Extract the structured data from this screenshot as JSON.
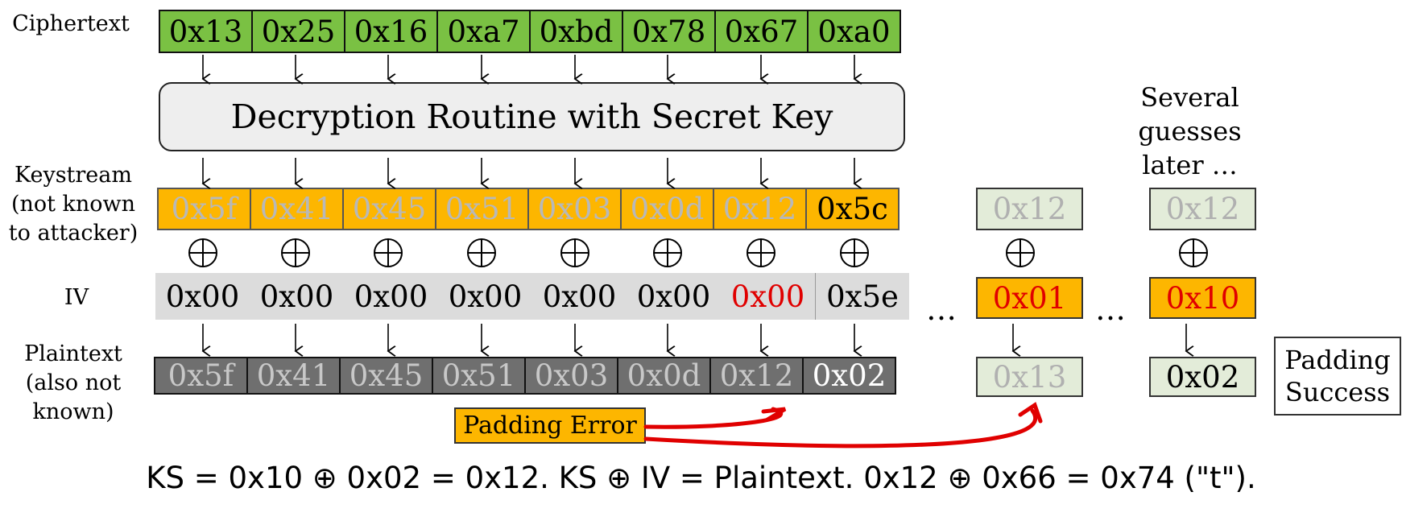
{
  "labels": {
    "ciphertext": "Ciphertext",
    "keystream": [
      "Keystream",
      "(not known",
      "to attacker)"
    ],
    "iv": "IV",
    "plaintext": [
      "Plaintext",
      "(also not",
      "known)"
    ]
  },
  "ciphertext": [
    "0x13",
    "0x25",
    "0x16",
    "0xa7",
    "0xbd",
    "0x78",
    "0x67",
    "0xa0"
  ],
  "decryption_routine": "Decryption Routine with Secret Key",
  "keystream": [
    "0x5f",
    "0x41",
    "0x45",
    "0x51",
    "0x03",
    "0x0d",
    "0x12",
    "0x5c"
  ],
  "xor_symbol": "⊕",
  "iv": [
    "0x00",
    "0x00",
    "0x00",
    "0x00",
    "0x00",
    "0x00",
    "0x00",
    "0x5e"
  ],
  "plaintext": [
    "0x5f",
    "0x41",
    "0x45",
    "0x51",
    "0x03",
    "0x0d",
    "0x12",
    "0x02"
  ],
  "ellipsis": "…",
  "guess1": {
    "keystream": "0x12",
    "iv": "0x01",
    "plaintext": "0x13"
  },
  "guess2": {
    "note": [
      "Several",
      "guesses",
      "later …"
    ],
    "keystream": "0x12",
    "iv": "0x10",
    "plaintext": "0x02"
  },
  "padding_error": "Padding Error",
  "padding_success": [
    "Padding",
    "Success"
  ],
  "formula": "KS = 0x10 ⊕ 0x02 = 0x12. KS ⊕ IV = Plaintext. 0x12 ⊕ 0x66 = 0x74 (\"t\").",
  "colors": {
    "ciphertext": "#7ac143",
    "keystream": "#fdb600",
    "iv_background": "#dcdcdc",
    "plaintext": "#6f6f6f",
    "guess_box": "#e3ecd9",
    "highlight_red": "#e00000",
    "arrow_red": "#e00000"
  }
}
